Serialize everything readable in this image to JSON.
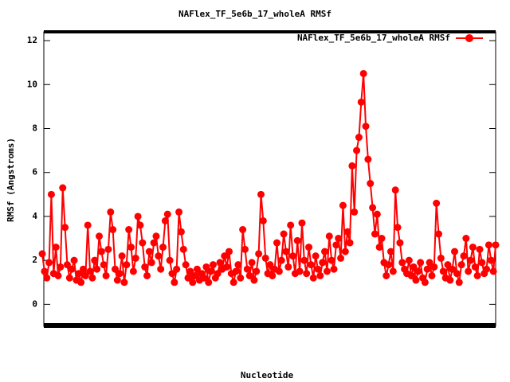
{
  "chart_data": {
    "type": "line",
    "title": "NAFlex_TF_5e6b_17_wholeA RMSf",
    "xlabel": "Nucleotide",
    "ylabel": "RMSf (Angstroms)",
    "ylim": [
      -1,
      12.4
    ],
    "yticks": [
      0,
      2,
      4,
      6,
      8,
      10,
      12
    ],
    "legend": "top-right",
    "series": [
      {
        "name": "NAFlex_TF_5e6b_17_wholeA RMSf",
        "color": "#ff0000",
        "values": [
          2.3,
          1.5,
          1.2,
          1.9,
          5.0,
          1.4,
          2.6,
          1.3,
          1.7,
          5.3,
          3.5,
          1.8,
          1.2,
          1.6,
          2.0,
          1.1,
          1.4,
          1.0,
          1.6,
          1.3,
          3.6,
          1.5,
          1.2,
          2.0,
          1.6,
          3.1,
          2.4,
          1.8,
          1.3,
          2.5,
          4.2,
          3.4,
          1.6,
          1.1,
          1.4,
          2.2,
          1.0,
          1.8,
          3.4,
          2.6,
          1.5,
          2.1,
          4.0,
          3.6,
          2.8,
          1.7,
          1.3,
          2.4,
          1.9,
          2.8,
          3.1,
          2.2,
          1.6,
          2.6,
          3.8,
          4.1,
          2.0,
          1.4,
          1.0,
          1.6,
          4.2,
          3.3,
          2.5,
          1.8,
          1.2,
          1.5,
          1.0,
          1.3,
          1.6,
          1.1,
          1.4,
          1.2,
          1.7,
          1.0,
          1.5,
          1.8,
          1.2,
          1.4,
          1.9,
          1.6,
          2.2,
          1.7,
          2.4,
          1.4,
          1.0,
          1.5,
          1.8,
          1.2,
          3.4,
          2.5,
          1.6,
          1.3,
          1.9,
          1.1,
          1.5,
          2.3,
          5.0,
          3.8,
          2.1,
          1.4,
          1.8,
          1.3,
          1.6,
          2.8,
          1.5,
          2.0,
          3.2,
          2.4,
          1.7,
          3.6,
          2.2,
          1.4,
          2.9,
          1.5,
          3.7,
          2.0,
          1.4,
          2.6,
          1.8,
          1.2,
          2.2,
          1.6,
          1.3,
          1.9,
          2.4,
          1.5,
          3.1,
          2.0,
          1.6,
          2.7,
          3.0,
          2.1,
          4.5,
          2.4,
          3.3,
          2.8,
          6.3,
          4.2,
          7.0,
          7.6,
          9.2,
          10.5,
          8.1,
          6.6,
          5.5,
          4.4,
          3.2,
          4.1,
          2.6,
          3.0,
          1.9,
          1.3,
          1.8,
          2.4,
          1.5,
          5.2,
          3.5,
          2.8,
          1.9,
          1.6,
          1.4,
          2.0,
          1.3,
          1.7,
          1.1,
          1.5,
          1.9,
          1.2,
          1.0,
          1.6,
          1.9,
          1.3,
          1.7,
          4.6,
          3.2,
          2.1,
          1.5,
          1.2,
          1.8,
          1.1,
          1.6,
          2.4,
          1.4,
          1.0,
          1.8,
          2.2,
          3.0,
          1.5,
          2.0,
          2.6,
          1.7,
          1.3,
          2.5,
          1.9,
          1.4,
          1.6,
          2.7,
          2.0,
          1.5,
          2.7
        ]
      }
    ]
  }
}
